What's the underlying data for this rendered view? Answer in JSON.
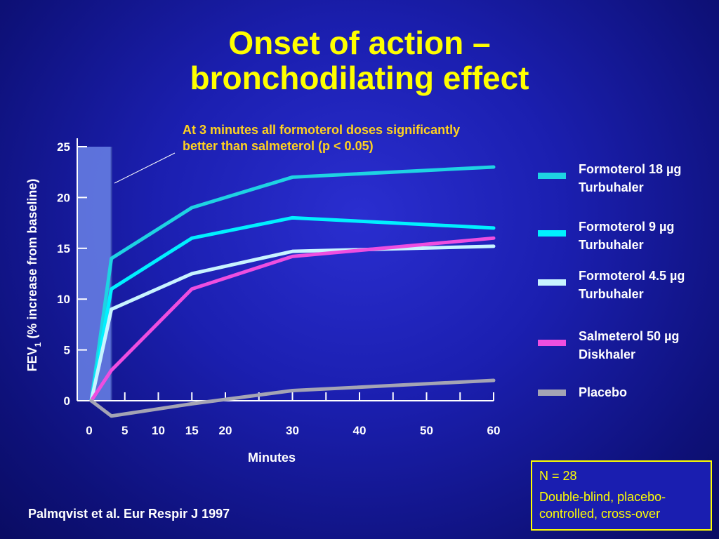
{
  "slide": {
    "title_line1": "Onset of action –",
    "title_line2": "bronchodilating effect",
    "annotation_line1": "At 3 minutes all formoterol doses significantly",
    "annotation_line2": "better than salmeterol (p < 0.05)",
    "citation": "Palmqvist et al. Eur Respir J 1997",
    "note_n": "N = 28",
    "note_design": "Double-blind, placebo-controlled, cross-over"
  },
  "colors": {
    "title": "#ffff00",
    "annotation": "#ffd21f",
    "highlight_band": "#6a82e6"
  },
  "chart_data": {
    "type": "line",
    "ylabel": "FEV",
    "ylabel_subscript": "1",
    "ylabel_suffix": " (% increase from baseline)",
    "xlabel": "Minutes",
    "xlim": [
      0,
      60
    ],
    "ylim": [
      0,
      25
    ],
    "x_ticks": [
      0,
      5,
      10,
      15,
      20,
      30,
      40,
      50,
      60
    ],
    "x_minor_ticks": [
      25,
      35,
      45,
      55
    ],
    "y_ticks": [
      0,
      5,
      10,
      15,
      20,
      25
    ],
    "highlight_band": [
      0,
      3
    ],
    "legend_position": "right",
    "grid": false,
    "series": [
      {
        "name": "Formoterol 18 µg\nTurbuhaler",
        "color": "#1ed3e3",
        "x": [
          0,
          3,
          15,
          30,
          60
        ],
        "y": [
          0,
          14,
          19,
          22,
          23
        ]
      },
      {
        "name": "Formoterol 9 µg\nTurbuhaler",
        "color": "#00f0ff",
        "x": [
          0,
          3,
          15,
          30,
          60
        ],
        "y": [
          0,
          11,
          16,
          18,
          17
        ]
      },
      {
        "name": "Formoterol 4.5 µg\nTurbuhaler",
        "color": "#c8f4ff",
        "x": [
          0,
          3,
          15,
          30,
          60
        ],
        "y": [
          0,
          9,
          12.5,
          14.7,
          15.2
        ]
      },
      {
        "name": "Salmeterol  50 µg\nDiskhaler",
        "color": "#ee4ee0",
        "x": [
          0,
          3,
          15,
          30,
          60
        ],
        "y": [
          0,
          3,
          11,
          14.2,
          16
        ]
      },
      {
        "name": "Placebo",
        "color": "#a4a4b4",
        "x": [
          0,
          3,
          15,
          30,
          60
        ],
        "y": [
          0,
          -1.5,
          -0.3,
          1,
          2
        ]
      }
    ]
  }
}
